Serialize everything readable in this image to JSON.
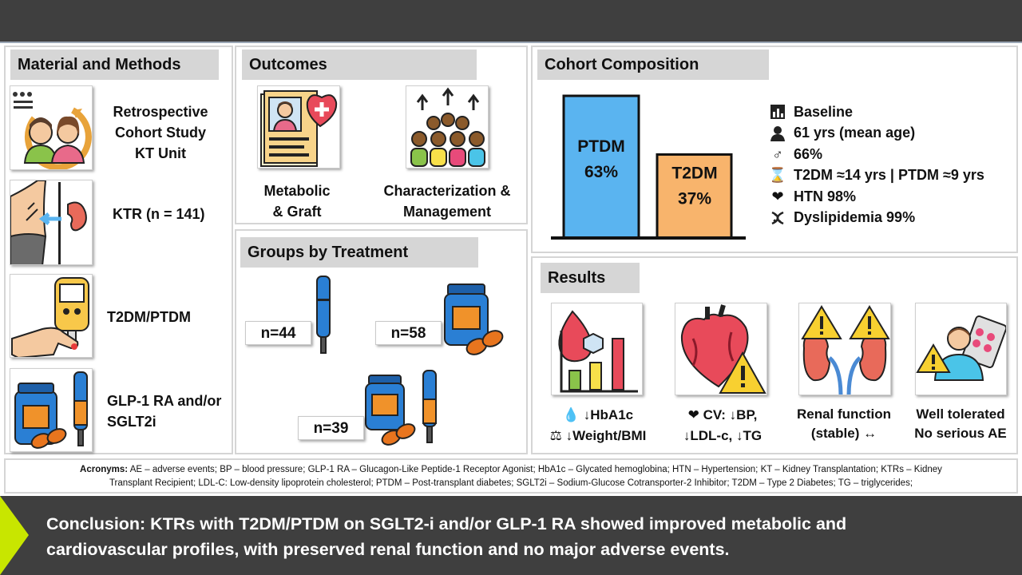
{
  "methods": {
    "header": "Material and Methods",
    "items": [
      {
        "label": "Retrospective Cohort Study KT Unit",
        "lines": [
          "Retrospective",
          "Cohort Study",
          "KT Unit"
        ],
        "icon": "patients-icon"
      },
      {
        "label": "KTR (n = 141)",
        "icon": "kidney-transplant-icon"
      },
      {
        "label": "T2DM/PTDM",
        "icon": "glucometer-icon"
      },
      {
        "label": "GLP-1 RA and/or SGLT2i",
        "lines": [
          "GLP-1 RA and/or",
          "SGLT2i"
        ],
        "icon": "medication-pen-icon"
      }
    ]
  },
  "outcomes": {
    "header": "Outcomes",
    "items": [
      {
        "lines": [
          "Metabolic",
          "& Graft"
        ],
        "icon": "patient-record-icon"
      },
      {
        "lines": [
          "Characterization &",
          "Management"
        ],
        "icon": "group-icon"
      }
    ]
  },
  "groups": {
    "header": "Groups by Treatment",
    "items": [
      {
        "label": "n=44",
        "icon": "injection-pen-icon"
      },
      {
        "label": "n=58",
        "icon": "pill-bottle-icon"
      },
      {
        "label": "n=39",
        "icon": "pill-bottle-and-pen-icon"
      }
    ]
  },
  "cohort": {
    "header": "Cohort Composition",
    "chart_data": {
      "type": "bar",
      "categories": [
        "PTDM",
        "T2DM"
      ],
      "values": [
        63,
        37
      ],
      "value_labels": [
        "63%",
        "37%"
      ],
      "colors": [
        "#5ab4f0",
        "#f8b46c"
      ]
    },
    "baseline": [
      {
        "text": "Baseline",
        "icon": "baseline-icon"
      },
      {
        "text": "61 yrs (mean age)",
        "icon": "person-icon"
      },
      {
        "text": "66%",
        "icon": "male-symbol-icon"
      },
      {
        "text": "T2DM ≈14 yrs | PTDM ≈9 yrs",
        "icon": "hourglass-icon"
      },
      {
        "text": "HTN 98%",
        "icon": "heart-icon"
      },
      {
        "text": "Dyslipidemia 99%",
        "icon": "dna-icon"
      }
    ]
  },
  "results": {
    "header": "Results",
    "items": [
      {
        "lines": [
          "↓HbA1c",
          "↓Weight/BMI"
        ],
        "line_icons": [
          "drop-icon",
          "scale-icon"
        ],
        "icon": "glucose-chart-icon"
      },
      {
        "lines": [
          "CV: ↓BP,",
          "↓LDL-c, ↓TG"
        ],
        "line_icons": [
          "heart-icon"
        ],
        "icon": "heart-warning-icon"
      },
      {
        "lines": [
          "Renal function",
          "(stable) ↔"
        ],
        "icon": "kidney-warning-icon"
      },
      {
        "lines": [
          "Well tolerated",
          "No serious AE"
        ],
        "icon": "patient-pills-icon"
      }
    ]
  },
  "acronyms": {
    "label": "Acronyms:",
    "line1": "AE – adverse events; BP – blood pressure; GLP-1 RA – Glucagon-Like Peptide-1 Receptor Agonist; HbA1c – Glycated hemoglobina; HTN – Hypertension; KT – Kidney Transplantation; KTRs – Kidney",
    "line2": "Transplant Recipient; LDL-C: Low-density lipoprotein cholesterol; PTDM – Post-transplant diabetes; SGLT2i – Sodium-Glucose Cotransporter-2 Inhibitor;  T2DM – Type 2 Diabetes; TG – triglycerides;"
  },
  "conclusion": {
    "line1": "Conclusion: KTRs with T2DM/PTDM on SGLT2-i and/or GLP-1 RA showed improved metabolic and",
    "line2": "cardiovascular profiles, with preserved renal function and no major adverse events."
  },
  "colors": {
    "dark_bar": "#3f3f3f",
    "accent_arrow": "#c8e600",
    "ptdm": "#5ab4f0",
    "t2dm": "#f8b46c",
    "header_bg": "#d6d6d6"
  }
}
